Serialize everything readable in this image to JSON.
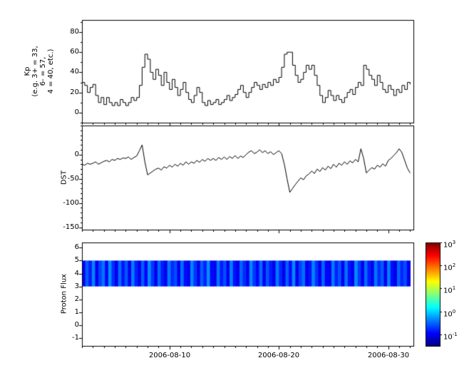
{
  "figure": {
    "background": "#ffffff",
    "line_color": "#000000"
  },
  "chart_data": [
    {
      "type": "line",
      "step": true,
      "name": "kp-index",
      "ylabel": "Kp (e.g. 3+ = 33, 6- = 57, 4 = 40, etc.)",
      "ylabel_lines": [
        "Kp",
        "(e.g. 3+ = 33,",
        "6- = 57,",
        "4 = 40, etc.)"
      ],
      "xlim": [
        2,
        32.3
      ],
      "ylim": [
        -10,
        92
      ],
      "x_start": 2,
      "x_step": 0.25,
      "xticks": [
        10,
        20,
        30
      ],
      "yticks": [
        0,
        20,
        40,
        60,
        80
      ],
      "ytick_labels": [
        "80",
        "60",
        "40",
        "20",
        "0"
      ],
      "yminor": [
        -10,
        90,
        10
      ],
      "color": "#000000",
      "values": [
        30,
        27,
        20,
        25,
        28,
        17,
        10,
        15,
        8,
        15,
        10,
        7,
        10,
        7,
        13,
        10,
        7,
        10,
        15,
        12,
        15,
        27,
        45,
        58,
        53,
        40,
        33,
        43,
        37,
        27,
        40,
        30,
        23,
        33,
        25,
        17,
        23,
        30,
        20,
        13,
        10,
        17,
        25,
        20,
        10,
        7,
        12,
        8,
        10,
        13,
        8,
        10,
        13,
        17,
        12,
        15,
        18,
        23,
        27,
        20,
        15,
        20,
        25,
        30,
        27,
        23,
        28,
        25,
        30,
        27,
        33,
        30,
        35,
        45,
        58,
        60,
        60,
        47,
        37,
        30,
        33,
        40,
        47,
        43,
        47,
        37,
        27,
        17,
        10,
        15,
        22,
        17,
        12,
        17,
        13,
        10,
        15,
        20,
        23,
        18,
        25,
        30,
        27,
        47,
        43,
        37,
        33,
        27,
        37,
        30,
        23,
        20,
        27,
        23,
        17,
        23,
        20,
        27,
        23,
        30,
        28
      ]
    },
    {
      "type": "line",
      "step": false,
      "name": "dst-index",
      "ylabel": "DST",
      "xlim": [
        2,
        32.3
      ],
      "ylim": [
        -155,
        60
      ],
      "x_start": 2,
      "x_step": 0.25,
      "xticks": [
        10,
        20,
        30
      ],
      "yticks": [
        0,
        -50,
        -100,
        -150
      ],
      "ytick_labels": [
        "0",
        "-50",
        "-100",
        "-150"
      ],
      "yminor": [
        -150,
        60,
        10
      ],
      "color": "#000000",
      "values": [
        -20,
        -22,
        -18,
        -20,
        -18,
        -15,
        -20,
        -17,
        -14,
        -12,
        -15,
        -10,
        -12,
        -8,
        -10,
        -7,
        -8,
        -5,
        -10,
        -6,
        -3,
        8,
        20,
        -15,
        -42,
        -38,
        -34,
        -30,
        -28,
        -32,
        -25,
        -28,
        -22,
        -26,
        -20,
        -24,
        -18,
        -22,
        -15,
        -20,
        -15,
        -18,
        -12,
        -16,
        -10,
        -14,
        -8,
        -12,
        -8,
        -12,
        -6,
        -10,
        -5,
        -10,
        -4,
        -8,
        -2,
        -8,
        -3,
        -6,
        0,
        5,
        8,
        2,
        5,
        10,
        4,
        8,
        2,
        6,
        0,
        4,
        8,
        2,
        -20,
        -50,
        -78,
        -70,
        -62,
        -55,
        -48,
        -52,
        -44,
        -40,
        -34,
        -39,
        -30,
        -35,
        -27,
        -32,
        -24,
        -29,
        -20,
        -26,
        -18,
        -22,
        -15,
        -20,
        -13,
        -17,
        -10,
        -15,
        12,
        -8,
        -38,
        -32,
        -27,
        -30,
        -22,
        -26,
        -19,
        -24,
        -12,
        -8,
        -2,
        4,
        12,
        4,
        -12,
        -28,
        -38
      ]
    },
    {
      "type": "heatmap",
      "name": "proton-flux-spectrogram",
      "ylabel": "Proton Flux",
      "xlim": [
        2,
        32.3
      ],
      "ylim": [
        -1.6,
        6.4
      ],
      "xticks": [
        10,
        20,
        30
      ],
      "xtick_labels": [
        "2006-08-10",
        "2006-08-20",
        "2006-08-30"
      ],
      "yticks": [
        -1,
        0,
        1,
        2,
        3,
        4,
        5,
        6
      ],
      "ytick_labels": [
        "6",
        "5",
        "4",
        "3",
        "2",
        "1",
        "0",
        "-1"
      ],
      "band_y": [
        3,
        5
      ],
      "x_start": 2,
      "x_end": 32,
      "clim_log": [
        -1.5,
        3
      ],
      "colormap": "jet",
      "flux_columns": [
        0.12,
        0.3,
        0.15,
        0.45,
        0.1,
        0.22,
        0.38,
        0.12,
        0.5,
        0.18,
        0.1,
        0.35,
        0.14,
        0.28,
        0.1,
        0.42,
        0.16,
        0.1,
        0.3,
        0.12,
        0.48,
        0.2,
        0.1,
        0.33,
        0.15,
        0.1,
        0.4,
        0.18,
        0.25,
        0.1,
        0.36,
        0.13,
        0.1,
        0.45,
        0.2,
        0.1,
        0.3,
        0.16,
        0.5,
        0.12,
        0.1,
        0.38,
        0.15,
        0.26,
        0.1,
        0.42,
        0.14,
        0.1,
        0.32,
        0.18,
        0.1,
        0.46,
        0.2,
        0.12,
        0.35,
        0.1,
        0.28,
        0.15,
        0.1,
        0.4,
        0.17,
        0.1,
        0.31,
        0.13,
        0.47,
        0.1,
        0.22,
        0.36,
        0.1,
        0.14,
        0.44,
        0.19,
        0.1,
        0.33,
        0.12,
        0.1,
        0.41,
        0.16,
        0.27,
        0.1,
        0.37,
        0.14,
        0.1,
        0.48,
        0.21,
        0.1,
        0.34,
        0.15,
        0.1,
        0.39,
        0.18,
        0.29,
        0.1,
        0.43,
        0.13,
        0.1,
        0.32,
        0.17,
        0.25,
        0.1
      ]
    }
  ],
  "colorbar": {
    "base": "10",
    "tick_exponents": [
      "3",
      "2",
      "1",
      "0",
      "-1"
    ],
    "log_range": [
      -1.5,
      3
    ],
    "colormap": "jet"
  }
}
